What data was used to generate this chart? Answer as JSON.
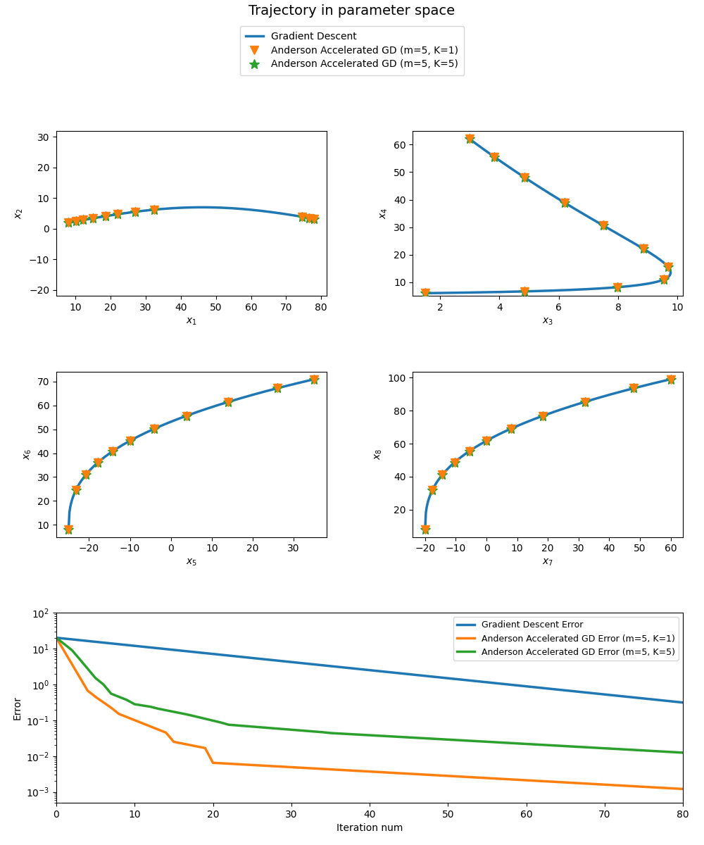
{
  "title": "Trajectory in parameter space",
  "title_fontsize": 14,
  "blue_color": "#1f77b4",
  "orange_color": "#ff7f0e",
  "green_color": "#2ca02c",
  "line_width": 2.5,
  "marker_size_v": 9,
  "marker_size_star": 10,
  "legend_gd": "Gradient Descent",
  "legend_aa1": "Anderson Accelerated GD (m=5, K=1)",
  "legend_aa5": "Anderson Accelerated GD (m=5, K=5)",
  "legend_gd_err": "Gradient Descent Error",
  "legend_aa1_err": "Anderson Accelerated GD Error (m=5, K=1)",
  "legend_aa5_err": "Anderson Accelerated GD Error (m=5, K=5)",
  "error_xlabel": "Iteration num",
  "error_ylabel": "Error"
}
